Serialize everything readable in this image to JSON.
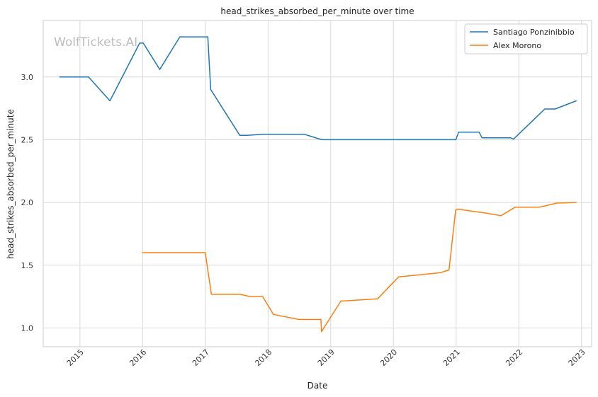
{
  "chart_data": {
    "type": "line",
    "title": "head_strikes_absorbed_per_minute over time",
    "xlabel": "Date",
    "ylabel": "head_strikes_absorbed_per_minute",
    "watermark": "WolfTickets.AI",
    "xlim": [
      "2014-06-01",
      "2023-03-01"
    ],
    "ylim": [
      0.85,
      3.45
    ],
    "x_ticks": [
      "2015-01-01",
      "2016-01-01",
      "2017-01-01",
      "2018-01-01",
      "2019-01-01",
      "2020-01-01",
      "2021-01-01",
      "2022-01-01",
      "2023-01-01"
    ],
    "x_tick_labels": [
      "2015",
      "2016",
      "2017",
      "2018",
      "2019",
      "2020",
      "2021",
      "2022",
      "2023"
    ],
    "y_ticks": [
      1.0,
      1.5,
      2.0,
      2.5,
      3.0
    ],
    "y_tick_labels": [
      "1.0",
      "1.5",
      "2.0",
      "2.5",
      "3.0"
    ],
    "grid": true,
    "legend_position": "top-right",
    "series": [
      {
        "name": "Santiago Ponzinibbio",
        "color": "#1f77b4",
        "x": [
          "2014-09-05",
          "2015-02-20",
          "2015-06-25",
          "2015-12-15",
          "2016-01-05",
          "2016-04-10",
          "2016-08-05",
          "2017-01-15",
          "2017-02-01",
          "2017-07-20",
          "2017-09-01",
          "2017-12-01",
          "2018-08-01",
          "2018-11-10",
          "2019-03-01",
          "2020-12-01",
          "2020-12-30",
          "2021-01-15",
          "2021-05-15",
          "2021-06-01",
          "2021-11-15",
          "2021-12-01",
          "2022-06-01",
          "2022-08-01",
          "2022-12-01"
        ],
        "y": [
          3.0,
          3.0,
          2.81,
          3.27,
          3.27,
          3.06,
          3.32,
          3.32,
          2.9,
          2.535,
          2.535,
          2.543,
          2.543,
          2.5,
          2.5,
          2.5,
          2.5,
          2.56,
          2.56,
          2.515,
          2.515,
          2.505,
          2.745,
          2.745,
          2.81
        ]
      },
      {
        "name": "Alex Morono",
        "color": "#ff7f0e",
        "x": [
          "2016-01-01",
          "2016-12-31",
          "2017-02-05",
          "2017-07-20",
          "2017-09-20",
          "2017-12-01",
          "2018-02-01",
          "2018-07-01",
          "2018-11-05",
          "2018-11-08",
          "2019-03-01",
          "2019-10-01",
          "2020-02-01",
          "2020-10-01",
          "2020-11-20",
          "2020-12-29",
          "2021-01-10",
          "2021-05-01",
          "2021-06-01",
          "2021-09-20",
          "2021-12-10",
          "2022-05-01",
          "2022-08-10",
          "2022-12-01"
        ],
        "y": [
          1.6,
          1.6,
          1.268,
          1.268,
          1.25,
          1.25,
          1.108,
          1.067,
          1.067,
          0.97,
          1.214,
          1.232,
          1.407,
          1.44,
          1.462,
          1.94,
          1.947,
          1.925,
          1.92,
          1.895,
          1.962,
          1.962,
          1.995,
          2.0
        ]
      }
    ]
  }
}
